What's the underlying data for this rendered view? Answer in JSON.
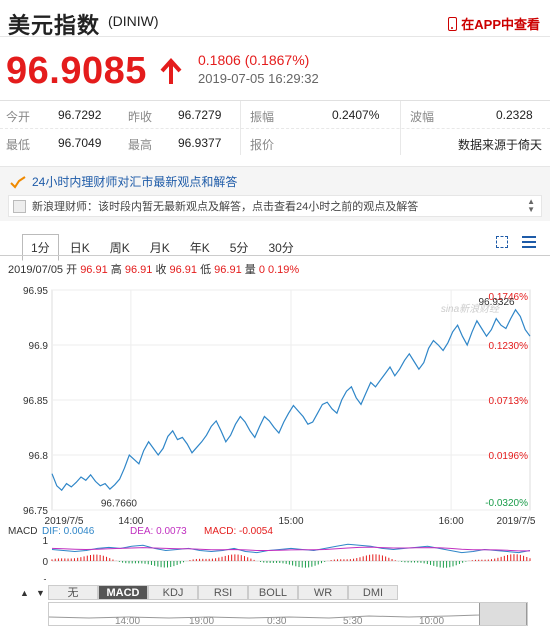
{
  "header": {
    "title": "美元指数",
    "code": "(DINIW)",
    "app_link": "在APP中查看"
  },
  "quote": {
    "price": "96.9085",
    "change": "0.1806 (0.1867%)",
    "time": "2019-07-05 16:29:32"
  },
  "stats": {
    "row1": [
      {
        "label": "今开",
        "value": "96.7292"
      },
      {
        "label": "昨收",
        "value": "96.7279"
      },
      {
        "label": "振幅",
        "value": "0.2407%"
      },
      {
        "label": "波幅",
        "value": "0.2328"
      }
    ],
    "row2": [
      {
        "label": "最低",
        "value": "96.7049"
      },
      {
        "label": "最高",
        "value": "96.9377"
      },
      {
        "label": "报价",
        "value": "数据来源于倚天"
      }
    ]
  },
  "news": {
    "heading": "24小时内理财师对汇市最新观点和解答",
    "line": "新浪理财师：该时段内暂无最新观点及解答，点击查看24小时之前的观点及解答",
    "scroll_up": "▲",
    "scroll_down": "▼"
  },
  "tabs": [
    "1分",
    "日K",
    "周K",
    "月K",
    "年K",
    "5分",
    "30分"
  ],
  "ohlc": {
    "date": "2019/07/05",
    "open_label": "开",
    "open": "96.91",
    "high_label": "高",
    "high": "96.91",
    "close_label": "收",
    "close": "96.91",
    "low_label": "低",
    "low": "96.91",
    "vol_label": "量",
    "vol": "0",
    "pct": "0.19%"
  },
  "chart_data": {
    "type": "line",
    "x_ticks": [
      "2019/7/5",
      "14:00",
      "15:00",
      "16:00",
      "2019/7/5"
    ],
    "y_ticks": [
      "96.95",
      "96.9",
      "96.85",
      "96.8",
      "96.75"
    ],
    "pct_ticks": [
      "0.1746%",
      "0.1230%",
      "0.0713%",
      "0.0196%",
      "-0.0320%"
    ],
    "ylim": [
      96.75,
      96.95
    ],
    "annotations": [
      {
        "label": "96.9326",
        "x": 0.93,
        "y": 96.9326
      },
      {
        "label": "96.7660",
        "x": 0.14,
        "y": 96.766
      }
    ],
    "watermark": "sina新浪财经",
    "series": [
      {
        "values": [
          96.783,
          96.772,
          96.768,
          96.774,
          96.771,
          96.775,
          96.78,
          96.777,
          96.782,
          96.776,
          96.772,
          96.774,
          96.769,
          96.773,
          96.778,
          96.788,
          96.8,
          96.796,
          96.792,
          96.804,
          96.812,
          96.806,
          96.8,
          96.806,
          96.817,
          96.822,
          96.814,
          96.816,
          96.81,
          96.802,
          96.807,
          96.812,
          96.818,
          96.826,
          96.831,
          96.822,
          96.812,
          96.818,
          96.828,
          96.835,
          96.83,
          96.822,
          96.816,
          96.826,
          96.835,
          96.831,
          96.825,
          96.82,
          96.83,
          96.838,
          96.845,
          96.84,
          96.835,
          96.828,
          96.83,
          96.838,
          96.846,
          96.848,
          96.842,
          96.838,
          96.85,
          96.858,
          96.862,
          96.852,
          96.846,
          96.856,
          96.866,
          96.862,
          96.868,
          96.874,
          96.88,
          96.872,
          96.878,
          96.886,
          96.892,
          96.885,
          96.878,
          96.884,
          96.897,
          96.904,
          96.9,
          96.895,
          96.902,
          96.912,
          96.918,
          96.908,
          96.9,
          96.912,
          96.922,
          96.915,
          96.908,
          96.914,
          96.924,
          96.918,
          96.915,
          96.924,
          96.932,
          96.926,
          96.914,
          96.908
        ]
      }
    ]
  },
  "macd": {
    "label": "MACD",
    "dif_label": "DIF: 0.0046",
    "dea_label": "DEA: 0.0073",
    "macd_label": "MACD: -0.0054",
    "y_ticks": [
      "1",
      "0",
      "-1"
    ],
    "dif": [
      0.55,
      0.5,
      0.45,
      0.5,
      0.6,
      0.65,
      0.6,
      0.7,
      0.75,
      0.6,
      0.5,
      0.55,
      0.6,
      0.5,
      0.45,
      0.5,
      0.6,
      0.45,
      0.4,
      0.5,
      0.55,
      0.6,
      0.55,
      0.5,
      0.6,
      0.7,
      0.8,
      0.75,
      0.7,
      0.6,
      0.55,
      0.6,
      0.65,
      0.7,
      0.6,
      0.5,
      0.4,
      0.45,
      0.55,
      0.5,
      0.45,
      0.4,
      0.5
    ],
    "dea": [
      0.6,
      0.58,
      0.56,
      0.55,
      0.56,
      0.58,
      0.6,
      0.62,
      0.64,
      0.62,
      0.6,
      0.58,
      0.58,
      0.56,
      0.54,
      0.54,
      0.55,
      0.53,
      0.5,
      0.5,
      0.51,
      0.53,
      0.54,
      0.54,
      0.55,
      0.58,
      0.62,
      0.65,
      0.66,
      0.64,
      0.62,
      0.62,
      0.63,
      0.64,
      0.63,
      0.6,
      0.56,
      0.54,
      0.54,
      0.53,
      0.51,
      0.48,
      0.48
    ]
  },
  "indicators": [
    "无",
    "MACD",
    "KDJ",
    "RSI",
    "BOLL",
    "WR",
    "DMI"
  ],
  "navigator": {
    "labels": [
      "14:00",
      "19:00",
      "0:30",
      "5:30",
      "10:00"
    ]
  },
  "colors": {
    "up": "#e41c1c",
    "line": "#2f86c8",
    "down": "#1a9c4a"
  }
}
